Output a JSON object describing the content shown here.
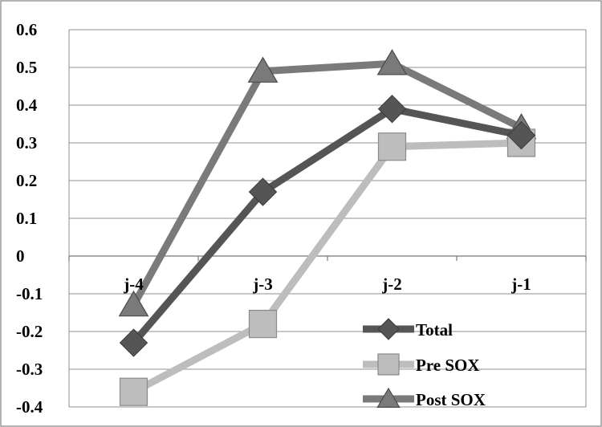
{
  "chart_data": {
    "type": "line",
    "title": "",
    "xlabel": "",
    "ylabel": "",
    "categories": [
      "j-4",
      "j-3",
      "j-2",
      "j-1"
    ],
    "ylim": [
      -0.4,
      0.6
    ],
    "yticks": [
      "0.6",
      "0.5",
      "0.4",
      "0.3",
      "0.2",
      "0.1",
      "0",
      "-0.1",
      "-0.2",
      "-0.3",
      "-0.4"
    ],
    "grid": true,
    "legend_position": "bottom-right",
    "series": [
      {
        "name": "Total",
        "values": [
          -0.23,
          0.17,
          0.39,
          0.32
        ],
        "color": "#555555",
        "marker": "diamond"
      },
      {
        "name": "Pre SOX",
        "values": [
          -0.36,
          -0.18,
          0.29,
          0.3
        ],
        "color": "#bdbdbd",
        "marker": "square"
      },
      {
        "name": "Post SOX",
        "values": [
          -0.13,
          0.49,
          0.51,
          0.34
        ],
        "color": "#7a7a7a",
        "marker": "triangle"
      }
    ]
  }
}
